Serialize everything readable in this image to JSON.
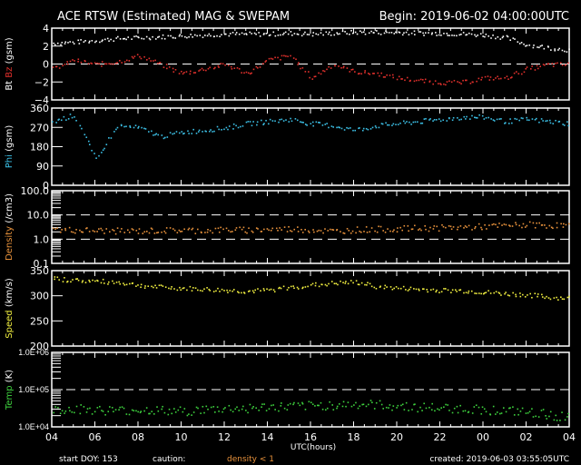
{
  "header": {
    "title": "ACE RTSW (Estimated) MAG & SWEPAM",
    "begin": "Begin: 2019-06-02 04:00:00UTC"
  },
  "footer": {
    "start_doy": "start DOY: 153",
    "caution": "caution:",
    "caution_item": "density < 1",
    "created": "created: 2019-06-03 03:55:05UTC"
  },
  "colors": {
    "bt": "#ffffff",
    "bz": "#e0302c",
    "phi": "#3cc0e6",
    "density": "#e8923c",
    "speed": "#f2f040",
    "temp": "#3ed23e"
  },
  "chart_data": {
    "type": "scatter",
    "xlabel": "UTC(hours)",
    "x_ticks": [
      "04",
      "06",
      "08",
      "10",
      "12",
      "14",
      "16",
      "18",
      "20",
      "22",
      "00",
      "02",
      "04"
    ],
    "x_hours": [
      0,
      1,
      2,
      3,
      4,
      5,
      6,
      7,
      8,
      9,
      10,
      11,
      12,
      13,
      14,
      15,
      16,
      17,
      18,
      19,
      20,
      21,
      22,
      23,
      24
    ],
    "panels": [
      {
        "id": "mag",
        "ylabel_parts": [
          "Bt",
          "Bz",
          "(gsm)"
        ],
        "scale": "linear",
        "ylim": [
          -4,
          4
        ],
        "ticks": [
          4,
          2,
          0,
          -2,
          -4
        ],
        "tick_labels": [
          "4",
          "2",
          "0",
          "−2",
          "−4"
        ],
        "dashed": [
          0
        ],
        "series": [
          {
            "name": "Bt",
            "color_key": "bt",
            "values": [
              2.4,
              2.5,
              2.7,
              2.9,
              3.0,
              3.1,
              3.2,
              3.3,
              3.4,
              3.4,
              3.4,
              3.5,
              3.4,
              3.5,
              3.6,
              3.6,
              3.6,
              3.5,
              3.5,
              3.4,
              3.3,
              3.0,
              2.2,
              1.9,
              1.6
            ]
          },
          {
            "name": "Bz",
            "color_key": "bz",
            "values": [
              -0.5,
              0.5,
              0.0,
              0.3,
              1.0,
              0.0,
              -1.0,
              -0.5,
              0.0,
              -1.0,
              0.5,
              1.0,
              -1.5,
              0.0,
              -0.8,
              -1.0,
              -1.5,
              -1.8,
              -2.0,
              -2.0,
              -1.5,
              -1.5,
              -0.5,
              0.0,
              0.0
            ]
          }
        ]
      },
      {
        "id": "phi",
        "ylabel_parts": [
          "Phi",
          "(gsm)"
        ],
        "scale": "linear",
        "ylim": [
          0,
          360
        ],
        "ticks": [
          360,
          270,
          180,
          90,
          0
        ],
        "tick_labels": [
          "360",
          "270",
          "180",
          "90",
          "0"
        ],
        "dashed": [],
        "series": [
          {
            "name": "Phi",
            "color_key": "phi",
            "values": [
              300,
              330,
              120,
              280,
              270,
              230,
              250,
              260,
              270,
              290,
              300,
              310,
              290,
              280,
              260,
              280,
              290,
              300,
              310,
              320,
              320,
              300,
              310,
              300,
              290
            ]
          }
        ]
      },
      {
        "id": "density",
        "ylabel_parts": [
          "Density",
          "(/cm3)"
        ],
        "scale": "log",
        "ylim": [
          0.1,
          100
        ],
        "ticks": [
          100,
          10,
          1,
          0.1
        ],
        "tick_labels": [
          "100.0",
          "10.0",
          "1.0",
          "0.1"
        ],
        "dashed": [
          10,
          1
        ],
        "series": [
          {
            "name": "Density",
            "color_key": "density",
            "values": [
              2.6,
              2.5,
              2.4,
              2.3,
              2.3,
              2.4,
              2.5,
              2.4,
              2.6,
              2.5,
              2.7,
              2.8,
              2.6,
              2.2,
              2.6,
              2.7,
              2.8,
              3.0,
              3.1,
              3.3,
              3.5,
              3.8,
              4.2,
              4.0,
              3.8
            ]
          }
        ]
      },
      {
        "id": "speed",
        "ylabel_parts": [
          "Speed",
          "(km/s)"
        ],
        "scale": "linear",
        "ylim": [
          200,
          350
        ],
        "ticks": [
          350,
          300,
          250,
          200
        ],
        "tick_labels": [
          "350",
          "300",
          "250",
          "200"
        ],
        "dashed": [],
        "series": [
          {
            "name": "Speed",
            "color_key": "speed",
            "values": [
              335,
              332,
              330,
              328,
              322,
              318,
              316,
              314,
              312,
              310,
              312,
              318,
              322,
              326,
              328,
              320,
              316,
              314,
              312,
              311,
              308,
              305,
              303,
              298,
              296
            ]
          }
        ]
      },
      {
        "id": "temp",
        "ylabel_parts": [
          "Temp",
          "(K)"
        ],
        "scale": "log",
        "ylim": [
          10000,
          1000000
        ],
        "ticks": [
          1000000,
          100000,
          10000
        ],
        "tick_labels": [
          "1.0E+06",
          "1.0E+05",
          "1.0E+04"
        ],
        "dashed": [
          100000
        ],
        "series": [
          {
            "name": "Temp",
            "color_key": "temp",
            "values": [
              30000,
              32000,
              30000,
              28000,
              30000,
              28000,
              27000,
              30000,
              32000,
              33000,
              35000,
              36000,
              38000,
              40000,
              42000,
              40000,
              38000,
              35000,
              33000,
              32000,
              30000,
              28000,
              25000,
              22000,
              18000
            ]
          }
        ]
      }
    ]
  }
}
